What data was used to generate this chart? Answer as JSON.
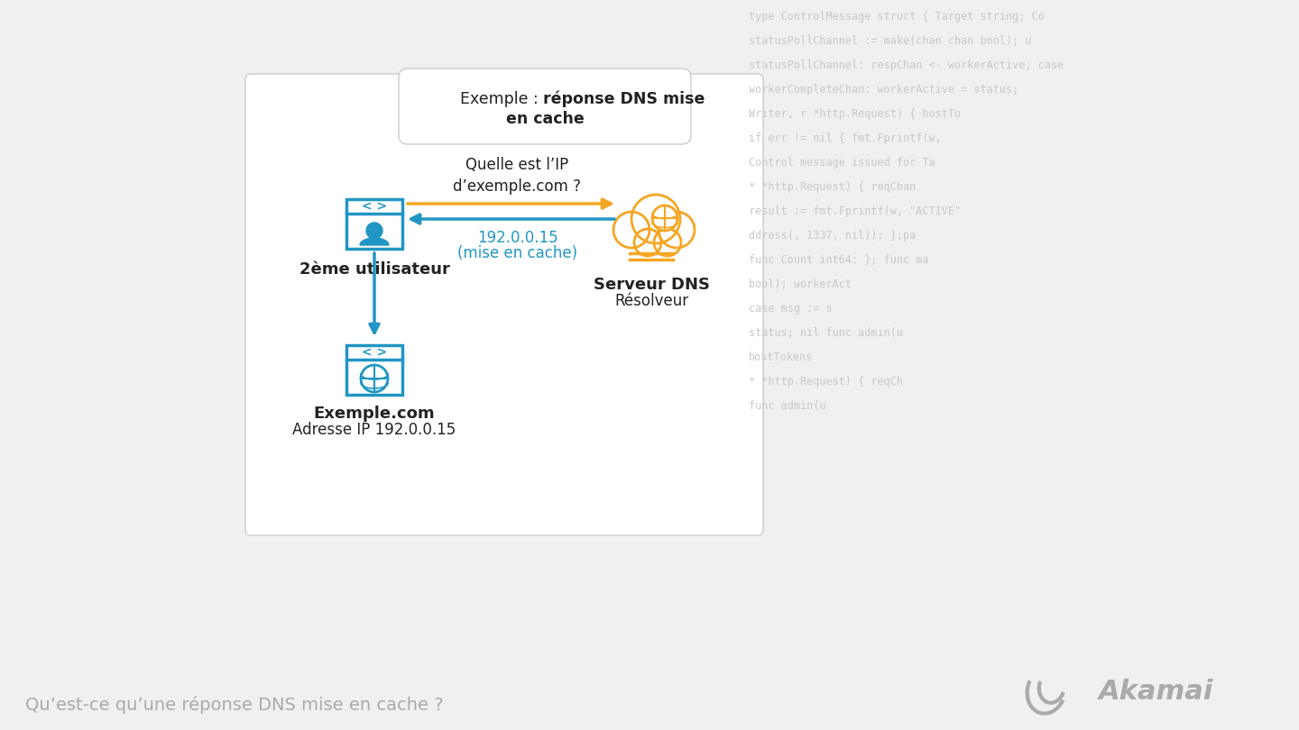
{
  "bg_color": "#f0f0f0",
  "panel_bg": "#ffffff",
  "panel_border": "#cccccc",
  "blue": "#2196c4",
  "orange": "#f5a623",
  "dark_text": "#222222",
  "gray_text": "#aaaaaa",
  "question_text": "Quelle est l’IP\nd’exemple.com ?",
  "arrow_label_line1": "192.0.0.15",
  "arrow_label_line2": "(mise en cache)",
  "user_label": "2ème utilisateur",
  "dns_label1": "Serveur DNS",
  "dns_label2": "Résolveur",
  "site_label1": "Exemple.com",
  "site_label2": "Adresse IP 192.0.0.15",
  "footer_text": "Qu’est-ce qu’une réponse DNS mise en cache ?",
  "code_color": "#c8c8c8",
  "code_lines": [
    "type ControlMessage struct { Target string; Co",
    "statusPollChannel := make(chan chan bool); u",
    "statusPollChannel: respChan <- workerActive; case",
    "workerCompleteChan: workerActive = status;",
    "Writer, r *http.Request) { hostTo",
    "if err != nil { fmt.Fprintf(w,",
    "Control message issued for Ta",
    "* *http.Request) { reqChan",
    "result := fmt.Fprintf(w, \"ACTIVE\"",
    "ddress(, 1337, nil)); };pa",
    "func Count int64: }; func ma",
    "bool); workerAct",
    "case msg := s",
    "status; nil func admin(u",
    "hostTokens",
    "* *http.Request) { reqCh",
    "func admin(u"
  ]
}
